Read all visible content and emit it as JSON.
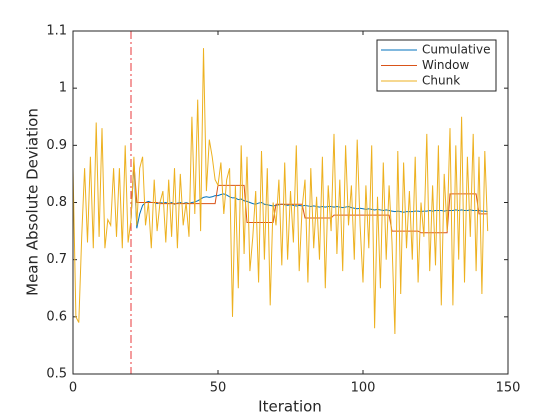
{
  "chart_data": {
    "type": "line",
    "xlabel": "Iteration",
    "ylabel": "Mean Absolute Deviation",
    "xlim": [
      0,
      150
    ],
    "xticks": [
      0,
      50,
      100,
      150
    ],
    "ylim": [
      0.5,
      1.1
    ],
    "yticks": [
      0.5,
      0.6,
      0.7,
      0.8,
      0.9,
      1,
      1.1
    ],
    "legend": "upper right",
    "vline": {
      "x": 20,
      "color": "#e8383b"
    },
    "x": [
      0,
      1,
      2,
      3,
      4,
      5,
      6,
      7,
      8,
      9,
      10,
      11,
      12,
      13,
      14,
      15,
      16,
      17,
      18,
      19,
      20,
      21,
      22,
      23,
      24,
      25,
      26,
      27,
      28,
      29,
      30,
      31,
      32,
      33,
      34,
      35,
      36,
      37,
      38,
      39,
      40,
      41,
      42,
      43,
      44,
      45,
      46,
      47,
      48,
      49,
      50,
      51,
      52,
      53,
      54,
      55,
      56,
      57,
      58,
      59,
      60,
      61,
      62,
      63,
      64,
      65,
      66,
      67,
      68,
      69,
      70,
      71,
      72,
      73,
      74,
      75,
      76,
      77,
      78,
      79,
      80,
      81,
      82,
      83,
      84,
      85,
      86,
      87,
      88,
      89,
      90,
      91,
      92,
      93,
      94,
      95,
      96,
      97,
      98,
      99,
      100,
      101,
      102,
      103,
      104,
      105,
      106,
      107,
      108,
      109,
      110,
      111,
      112,
      113,
      114,
      115,
      116,
      117,
      118,
      119,
      120,
      121,
      122,
      123,
      124,
      125,
      126,
      127,
      128,
      129,
      130,
      131,
      132,
      133,
      134,
      135,
      136,
      137,
      138,
      139,
      140,
      141,
      142,
      143
    ],
    "series": [
      {
        "name": "Cumulative",
        "color": "#0072bd",
        "values": [
          null,
          null,
          null,
          null,
          null,
          null,
          null,
          null,
          null,
          null,
          null,
          null,
          null,
          null,
          null,
          null,
          null,
          null,
          null,
          null,
          0.77,
          0.87,
          0.755,
          0.78,
          0.795,
          0.8,
          0.802,
          0.8,
          0.8,
          0.798,
          0.8,
          0.799,
          0.8,
          0.798,
          0.8,
          0.797,
          0.799,
          0.8,
          0.798,
          0.8,
          0.798,
          0.8,
          0.801,
          0.803,
          0.806,
          0.809,
          0.81,
          0.809,
          0.81,
          0.812,
          0.812,
          0.814,
          0.815,
          0.813,
          0.81,
          0.808,
          0.808,
          0.805,
          0.806,
          0.803,
          0.802,
          0.8,
          0.798,
          0.797,
          0.799,
          0.8,
          0.797,
          0.796,
          0.795,
          0.794,
          0.795,
          0.796,
          0.797,
          0.796,
          0.795,
          0.796,
          0.795,
          0.794,
          0.795,
          0.794,
          0.795,
          0.794,
          0.793,
          0.794,
          0.793,
          0.792,
          0.793,
          0.792,
          0.793,
          0.793,
          0.792,
          0.793,
          0.792,
          0.791,
          0.792,
          0.793,
          0.791,
          0.79,
          0.789,
          0.79,
          0.789,
          0.788,
          0.789,
          0.788,
          0.787,
          0.788,
          0.787,
          0.786,
          0.787,
          0.786,
          0.785,
          0.784,
          0.785,
          0.784,
          0.783,
          0.784,
          0.784,
          0.784,
          0.785,
          0.785,
          0.784,
          0.785,
          0.785,
          0.786,
          0.785,
          0.786,
          0.786,
          0.786,
          0.785,
          0.786,
          0.786,
          0.786,
          0.787,
          0.786,
          0.787,
          0.786,
          0.786,
          0.787,
          0.786,
          0.786,
          0.786,
          0.785,
          0.785,
          0.784
        ]
      },
      {
        "name": "Window",
        "color": "#d95319",
        "values": [
          null,
          null,
          null,
          null,
          null,
          null,
          null,
          null,
          null,
          null,
          null,
          null,
          null,
          null,
          null,
          null,
          null,
          null,
          null,
          null,
          0.77,
          0.87,
          0.8,
          0.8,
          0.8,
          0.8,
          0.8,
          0.8,
          0.8,
          0.8,
          0.798,
          0.798,
          0.798,
          0.798,
          0.798,
          0.798,
          0.798,
          0.798,
          0.798,
          0.798,
          0.798,
          0.798,
          0.798,
          0.798,
          0.798,
          0.798,
          0.798,
          0.798,
          0.798,
          0.798,
          0.83,
          0.83,
          0.83,
          0.83,
          0.83,
          0.83,
          0.83,
          0.83,
          0.83,
          0.83,
          0.765,
          0.765,
          0.765,
          0.765,
          0.765,
          0.765,
          0.765,
          0.765,
          0.765,
          0.765,
          0.797,
          0.797,
          0.797,
          0.797,
          0.797,
          0.797,
          0.797,
          0.797,
          0.797,
          0.797,
          0.773,
          0.773,
          0.773,
          0.773,
          0.773,
          0.773,
          0.773,
          0.773,
          0.773,
          0.773,
          0.778,
          0.778,
          0.778,
          0.778,
          0.778,
          0.778,
          0.778,
          0.778,
          0.778,
          0.778,
          0.778,
          0.778,
          0.778,
          0.778,
          0.778,
          0.778,
          0.778,
          0.778,
          0.778,
          0.778,
          0.75,
          0.75,
          0.75,
          0.75,
          0.75,
          0.75,
          0.75,
          0.75,
          0.75,
          0.75,
          0.747,
          0.747,
          0.747,
          0.747,
          0.747,
          0.747,
          0.747,
          0.747,
          0.747,
          0.747,
          0.815,
          0.815,
          0.815,
          0.815,
          0.815,
          0.815,
          0.815,
          0.815,
          0.815,
          0.815,
          0.78,
          0.78,
          0.78,
          0.78
        ]
      },
      {
        "name": "Chunk",
        "color": "#edb120",
        "values": [
          0.86,
          0.6,
          0.59,
          0.74,
          0.86,
          0.73,
          0.88,
          0.72,
          0.94,
          0.74,
          0.93,
          0.72,
          0.77,
          0.76,
          0.86,
          0.74,
          0.86,
          0.72,
          0.9,
          0.73,
          0.77,
          0.88,
          0.76,
          0.86,
          0.88,
          0.76,
          0.8,
          0.72,
          0.84,
          0.75,
          0.8,
          0.82,
          0.73,
          0.84,
          0.74,
          0.86,
          0.72,
          0.85,
          0.76,
          0.8,
          0.74,
          0.95,
          0.78,
          0.98,
          0.75,
          1.07,
          0.82,
          0.91,
          0.88,
          0.84,
          0.83,
          0.87,
          0.78,
          0.84,
          0.86,
          0.6,
          0.83,
          0.65,
          0.9,
          0.71,
          0.88,
          0.68,
          0.74,
          0.82,
          0.66,
          0.89,
          0.7,
          0.86,
          0.62,
          0.8,
          0.76,
          0.84,
          0.69,
          0.87,
          0.7,
          0.82,
          0.73,
          0.9,
          0.68,
          0.79,
          0.84,
          0.66,
          0.86,
          0.72,
          0.81,
          0.7,
          0.88,
          0.65,
          0.83,
          0.75,
          0.92,
          0.71,
          0.84,
          0.68,
          0.9,
          0.76,
          0.83,
          0.7,
          0.91,
          0.76,
          0.66,
          0.83,
          0.72,
          0.9,
          0.58,
          0.81,
          0.65,
          0.87,
          0.7,
          0.83,
          0.73,
          0.57,
          0.89,
          0.64,
          0.87,
          0.72,
          0.82,
          0.7,
          0.88,
          0.66,
          0.8,
          0.74,
          0.92,
          0.68,
          0.83,
          0.69,
          0.9,
          0.62,
          0.85,
          0.75,
          0.93,
          0.62,
          0.9,
          0.7,
          0.95,
          0.66,
          0.88,
          0.74,
          0.92,
          0.68,
          0.88,
          0.64,
          0.89,
          0.75
        ]
      }
    ]
  }
}
